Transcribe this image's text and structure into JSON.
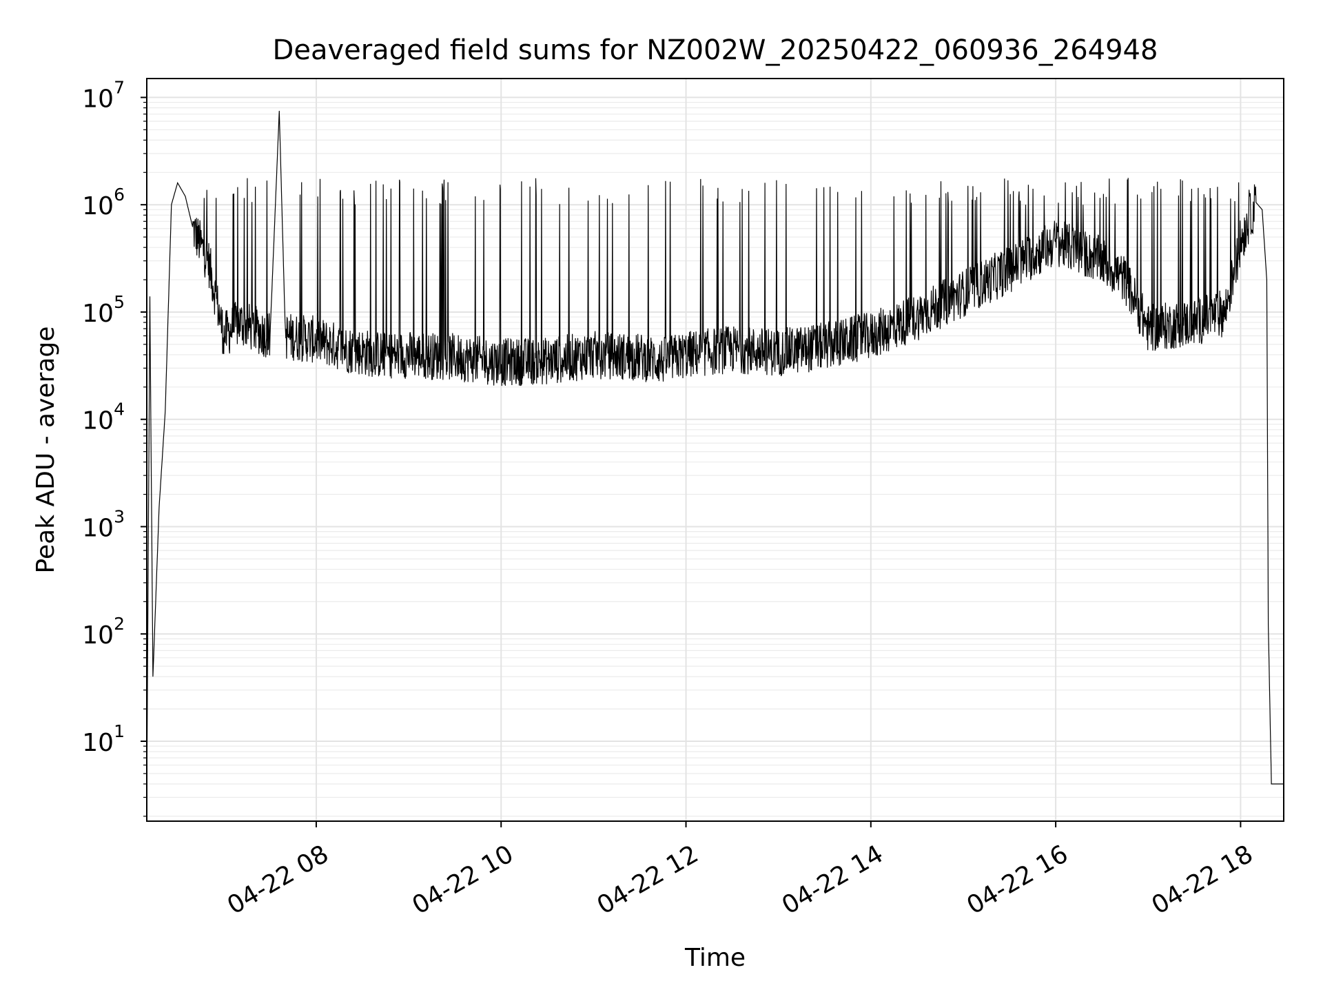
{
  "chart_data": {
    "type": "line",
    "title": "Deaveraged field sums for NZ002W_20250422_060936_264948",
    "xlabel": "Time",
    "ylabel": "Peak ADU - average",
    "yscale": "log",
    "ylim": [
      1.8,
      15000000
    ],
    "xlim": [
      "04-22 06:10",
      "04-22 18:28"
    ],
    "grid": true,
    "line_color": "#000000",
    "x_ticks": [
      "04-22 08",
      "04-22 10",
      "04-22 12",
      "04-22 14",
      "04-22 16",
      "04-22 18"
    ],
    "y_ticks": [
      {
        "base": "10",
        "exp": "1",
        "value": 10
      },
      {
        "base": "10",
        "exp": "2",
        "value": 100
      },
      {
        "base": "10",
        "exp": "3",
        "value": 1000
      },
      {
        "base": "10",
        "exp": "4",
        "value": 10000
      },
      {
        "base": "10",
        "exp": "5",
        "value": 100000
      },
      {
        "base": "10",
        "exp": "6",
        "value": 1000000
      },
      {
        "base": "10",
        "exp": "7",
        "value": 10000000
      }
    ],
    "series": [
      {
        "x": [
          "04-22 06:10",
          "04-22 06:12",
          "04-22 06:14",
          "04-22 06:18",
          "04-22 06:22",
          "04-22 06:26",
          "04-22 06:30",
          "04-22 06:35",
          "04-22 06:40",
          "04-22 06:50",
          "04-22 07:00",
          "04-22 07:10",
          "04-22 07:30",
          "04-22 07:36",
          "04-22 07:40",
          "04-22 08:00",
          "04-22 08:20",
          "04-22 08:40",
          "04-22 09:00",
          "04-22 09:30",
          "04-22 10:00",
          "04-22 10:30",
          "04-22 11:00",
          "04-22 11:30",
          "04-22 11:45",
          "04-22 12:00",
          "04-22 12:30",
          "04-22 13:00",
          "04-22 13:30",
          "04-22 14:00",
          "04-22 14:30",
          "04-22 15:00",
          "04-22 15:30",
          "04-22 16:00",
          "04-22 16:30",
          "04-22 16:45",
          "04-22 17:00",
          "04-22 17:30",
          "04-22 17:50",
          "04-22 18:00",
          "04-22 18:05",
          "04-22 18:10",
          "04-22 18:14",
          "04-22 18:17",
          "04-22 18:18",
          "04-22 18:20",
          "04-22 18:28"
        ],
        "y": [
          3,
          140000,
          40,
          1500,
          12000,
          1000000,
          1600000,
          1200000,
          600000,
          300000,
          60000,
          80000,
          60000,
          7500000,
          60000,
          55000,
          45000,
          40000,
          40000,
          38000,
          34000,
          35000,
          40000,
          38000,
          35000,
          40000,
          45000,
          42000,
          48000,
          60000,
          90000,
          150000,
          250000,
          450000,
          300000,
          200000,
          70000,
          80000,
          100000,
          450000,
          700000,
          1050000,
          900000,
          200000,
          120,
          4,
          4
        ]
      }
    ]
  }
}
